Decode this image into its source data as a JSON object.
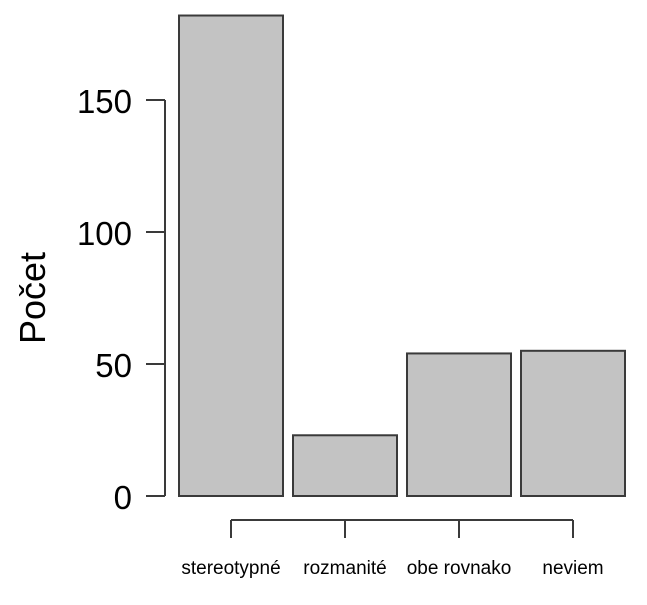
{
  "chart_data": {
    "type": "bar",
    "title": "",
    "categories": [
      "stereotypné",
      "rozmanité",
      "obe rovnako",
      "neviem"
    ],
    "values": [
      182,
      23,
      54,
      55
    ],
    "xlabel": "",
    "ylabel": "Počet",
    "yticks": [
      0,
      50,
      100,
      150
    ],
    "ylim": [
      0,
      185
    ],
    "grid": false,
    "legend": false,
    "colors": {
      "bar_fill": "#c3c3c3",
      "bar_border": "#3a3a3a",
      "axis": "#3a3a3a",
      "text": "#000000",
      "background": "#ffffff"
    }
  }
}
